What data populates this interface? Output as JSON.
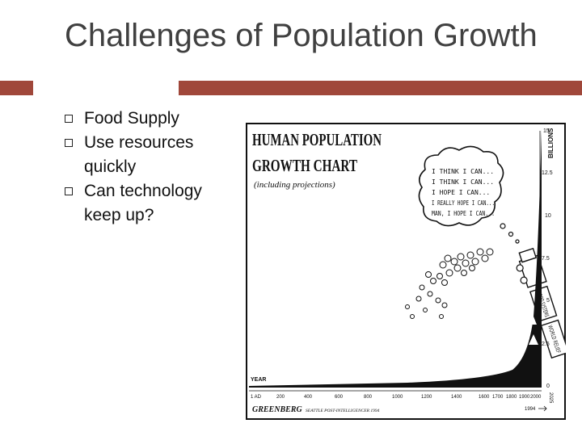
{
  "slide": {
    "title": "Challenges of Population Growth",
    "bullets": [
      {
        "text": "Food Supply"
      },
      {
        "text": "Use resources quickly"
      },
      {
        "text": "Can technology keep up?"
      }
    ]
  },
  "cartoon": {
    "heading_1": "HUMAN POPULATION",
    "heading_2": "GROWTH CHART",
    "subheading": "(including projections)",
    "thought_lines": [
      "I THINK I CAN...",
      "I THINK I CAN...",
      "I HOPE I CAN...",
      "I REALLY HOPE I CAN...",
      "MAN, I HOPE I CAN..."
    ],
    "axis_unit": "BILLIONS",
    "y_ticks": [
      "15",
      "12.5",
      "10",
      "7.5",
      "5",
      "2.5",
      "0"
    ],
    "x_axis_title": "YEAR",
    "x_ticks": [
      "1 AD",
      "200",
      "400",
      "600",
      "800",
      "1000",
      "1200",
      "1400",
      "1600",
      "1700",
      "1800",
      "1900",
      "2000",
      "2025"
    ],
    "car_labels": [
      "WORLD RELIEF",
      "FOOD SYSTEMS"
    ],
    "year_marker": "1994",
    "signature": "GREENBERG",
    "credit": "SEATTLE POST-INTELLIGENCER 1994",
    "colors": {
      "ink": "#111111",
      "paper": "#ffffff"
    }
  }
}
